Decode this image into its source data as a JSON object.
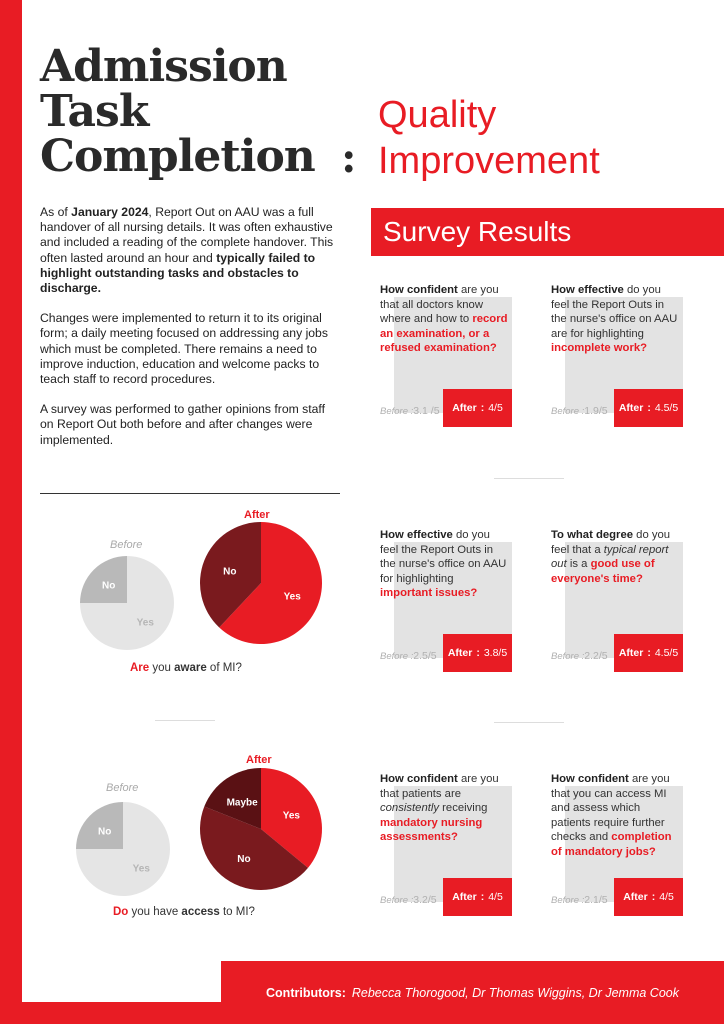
{
  "title": {
    "main_lines": [
      "Admission",
      "Task",
      "Completion"
    ],
    "colon": ":",
    "subtitle_lines": [
      "Quality",
      "Improvement"
    ]
  },
  "intro": {
    "p1_a": "As of ",
    "p1_b": "January 2024",
    "p1_c": ", Report Out on AAU was a full handover of all nursing details. It was often exhaustive and included a reading of the complete handover. This often lasted around an hour and ",
    "p1_d": "typically failed to highlight outstanding tasks and obstacles to discharge.",
    "p2": "Changes were implemented to return it to its original form; a daily meeting focused on addressing any jobs which must be completed. There remains a need to improve induction, education and welcome packs to teach staff to record procedures.",
    "p3": "A survey was performed to gather opinions from staff on Report Out both before and after changes were implemented."
  },
  "survey": {
    "heading": "Survey Results",
    "cards": [
      {
        "q_bold": "How confident",
        "q_text": " are you that all doctors know where and how to ",
        "q_red": "record an examination, or a refused examination?",
        "before_label": "Before :",
        "before_value": "3.1 /5",
        "after_label": "After",
        "after_sep": ":",
        "after_value": "4/5"
      },
      {
        "q_bold": "How effective",
        "q_text": " do you feel the Report Outs in the nurse's office on AAU are for highlighting ",
        "q_red": "incomplete work?",
        "before_label": "Before :",
        "before_value": "1.9/5",
        "after_label": "After",
        "after_sep": ":",
        "after_value": "4.5/5"
      },
      {
        "q_bold": "How effective",
        "q_text": " do you feel the Report Outs in the nurse's office on AAU for highlighting ",
        "q_red": "important issues?",
        "before_label": "Before :",
        "before_value": "2.5/5",
        "after_label": "After",
        "after_sep": ":",
        "after_value": "3.8/5"
      },
      {
        "q_bold": "To what degree",
        "q_text": " do you feel that a ",
        "q_italic": "typical report out",
        "q_text2": " is a ",
        "q_red": "good use of everyone's time?",
        "before_label": "Before :",
        "before_value": "2.2/5",
        "after_label": "After",
        "after_sep": ":",
        "after_value": "4.5/5"
      },
      {
        "q_bold": "How confident",
        "q_text": " are you that patients are ",
        "q_italic": "consistently",
        "q_text2": " receiving ",
        "q_red": "mandatory nursing assessments?",
        "before_label": "Before :",
        "before_value": "3.2/5",
        "after_label": "After",
        "after_sep": ":",
        "after_value": "4/5"
      },
      {
        "q_bold": "How confident",
        "q_text": " are you that you can access MI and assess which patients require further checks and ",
        "q_red": "completion of mandatory jobs?",
        "before_label": "Before :",
        "before_value": "2.1/5",
        "after_label": "After",
        "after_sep": ":",
        "after_value": "4/5"
      }
    ]
  },
  "pies": {
    "aware": {
      "before_title": "Before",
      "after_title": "After",
      "before": [
        {
          "label": "No",
          "value": 0.25,
          "color": "#b9b9b9"
        },
        {
          "label": "Yes",
          "value": 0.75,
          "color": "#e5e5e5"
        }
      ],
      "after": [
        {
          "label": "Yes",
          "value": 0.62,
          "color": "#e81c24"
        },
        {
          "label": "No",
          "value": 0.38,
          "color": "#7a1a1e"
        }
      ],
      "caption_red": "Are",
      "caption_a": " you ",
      "caption_b": "aware",
      "caption_c": " of MI?"
    },
    "access": {
      "before_title": "Before",
      "after_title": "After",
      "before": [
        {
          "label": "No",
          "value": 0.25,
          "color": "#b9b9b9"
        },
        {
          "label": "Yes",
          "value": 0.75,
          "color": "#e5e5e5"
        }
      ],
      "after": [
        {
          "label": "Yes",
          "value": 0.36,
          "color": "#e81c24"
        },
        {
          "label": "No",
          "value": 0.45,
          "color": "#7a1a1e"
        },
        {
          "label": "Maybe",
          "value": 0.19,
          "color": "#5a1114"
        }
      ],
      "caption_red": "Do",
      "caption_a": " you have ",
      "caption_b": "access",
      "caption_c": " to MI?"
    }
  },
  "footer": {
    "label": "Contributors:",
    "names": "Rebecca Thorogood, Dr Thomas Wiggins, Dr Jemma Cook"
  },
  "colors": {
    "accent": "#e81c24",
    "dark_red": "#7a1a1e",
    "grey": "#b9b9b9"
  }
}
